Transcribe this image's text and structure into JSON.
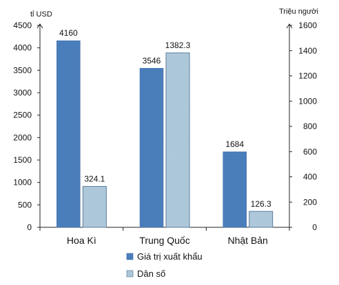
{
  "chart_data": {
    "type": "bar",
    "categories": [
      "Hoa Kì",
      "Trung Quốc",
      "Nhật Bản"
    ],
    "series": [
      {
        "name": "Giá trị xuất khẩu",
        "values": [
          4160,
          3546,
          1684
        ],
        "labels": [
          "4160",
          "3546",
          "1684"
        ],
        "color": "#4a7ebb",
        "axis": "left"
      },
      {
        "name": "Dân số",
        "values": [
          324.1,
          1382.3,
          126.3
        ],
        "labels": [
          "324.1",
          "1382.3",
          "126.3"
        ],
        "color": "#a9c4d8",
        "axis": "right"
      }
    ],
    "left_axis": {
      "unit": "tỉ USD",
      "ylim": [
        0,
        4500
      ],
      "ticks": [
        0,
        500,
        1000,
        1500,
        2000,
        2500,
        3000,
        3500,
        4000,
        4500
      ]
    },
    "right_axis": {
      "unit": "Triệu người",
      "ylim": [
        0,
        1600
      ],
      "ticks": [
        0,
        200,
        400,
        600,
        800,
        1000,
        1200,
        1400,
        1600
      ]
    },
    "grid": false,
    "legend_position": "bottom-center"
  }
}
